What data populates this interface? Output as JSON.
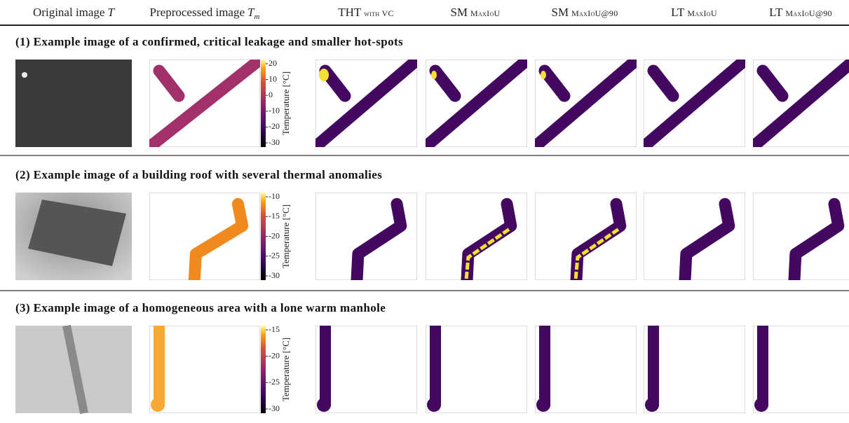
{
  "headers": [
    {
      "text": "Original image",
      "math": "T"
    },
    {
      "text": "Preprocessed image",
      "math": "T",
      "subscript": "m"
    },
    {
      "text": "THT",
      "sub": "with VC"
    },
    {
      "text": "SM",
      "sub": "MaxIoU"
    },
    {
      "text": "SM",
      "sub": "MaxIoU@90"
    },
    {
      "text": "LT",
      "sub": "MaxIoU"
    },
    {
      "text": "LT",
      "sub": "MaxIoU@90"
    }
  ],
  "rows": [
    {
      "title": "(1) Example image of a confirmed, critical leakage and smaller hot-spots",
      "colorbar": {
        "label": "Temperature [°C]",
        "ticks": [
          "20",
          "10",
          "0",
          "-10",
          "-20",
          "-30"
        ]
      }
    },
    {
      "title": "(2) Example image of a building roof with several thermal anomalies",
      "colorbar": {
        "label": "Temperature [°C]",
        "ticks": [
          "-10",
          "-15",
          "-20",
          "-25",
          "-30"
        ]
      }
    },
    {
      "title": "(3) Example image of a homogeneous area with a lone warm manhole",
      "colorbar": {
        "label": "Temperature [°C]",
        "ticks": [
          "-15",
          "-20",
          "-25",
          "-30"
        ]
      }
    }
  ]
}
